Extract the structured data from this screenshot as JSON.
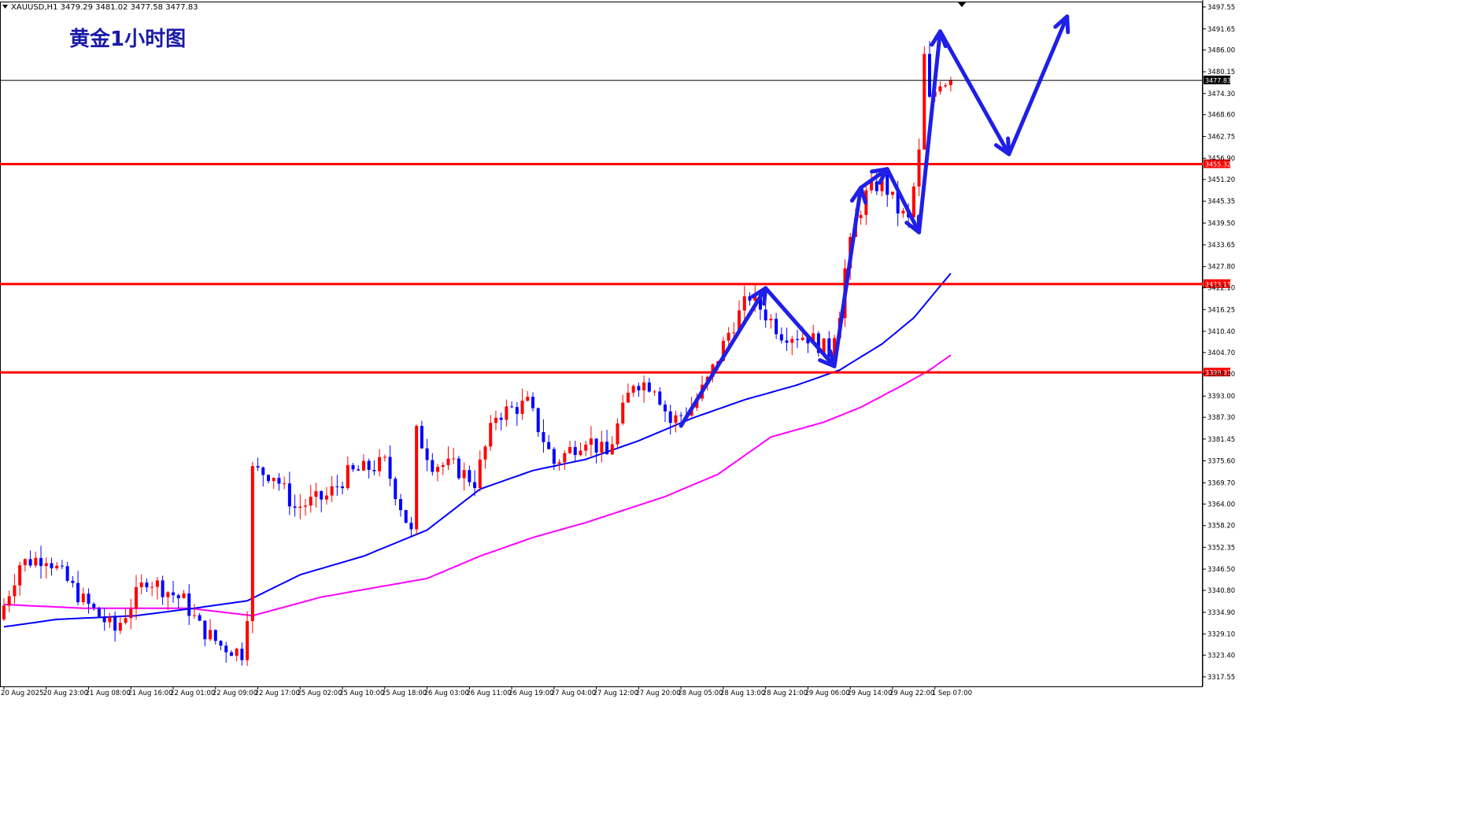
{
  "header": {
    "symbol_line": "XAUUSD,H1  3479.29 3481.02 3477.58 3477.83",
    "title": "黄金1小时图"
  },
  "colors": {
    "bull": "#ff0000",
    "bear": "#0000ff",
    "ma_fast": "#0000ff",
    "ma_slow": "#ff00ff",
    "level_line": "#ff0000",
    "arrow": "#1f1fe6",
    "title": "#1a1aa8"
  },
  "chart_data": {
    "type": "candlestick",
    "title": "黄金1小时图",
    "symbol": "XAUUSD,H1",
    "ohlc_header": [
      3479.29,
      3481.02,
      3477.58,
      3477.83
    ],
    "ylim": [
      3315.0,
      3499.0
    ],
    "y_ticks": [
      3497.55,
      3491.65,
      3486.0,
      3480.15,
      3474.3,
      3468.6,
      3462.75,
      3456.9,
      3451.2,
      3445.35,
      3439.5,
      3433.65,
      3427.8,
      3422.1,
      3416.25,
      3410.4,
      3404.7,
      3399.0,
      3393.0,
      3387.3,
      3381.45,
      3375.6,
      3369.7,
      3364.0,
      3358.2,
      3352.35,
      3346.5,
      3340.8,
      3334.9,
      3329.1,
      3323.4,
      3317.55
    ],
    "y_tick_labels": [
      "3497.55",
      "3491.65",
      "3486.00",
      "3480.15",
      "3474.30",
      "3468.60",
      "3462.75",
      "3456.90",
      "3451.20",
      "3445.35",
      "3439.50",
      "3433.65",
      "3427.80",
      "3422.10",
      "3416.25",
      "3410.40",
      "3404.70",
      "3399.00",
      "3393.00",
      "3387.30",
      "3381.45",
      "3375.60",
      "3369.70",
      "3364.00",
      "3358.20",
      "3352.35",
      "3346.50",
      "3340.80",
      "3334.90",
      "3329.10",
      "3323.40",
      "3317.55"
    ],
    "x_tick_labels": [
      "20 Aug 2025",
      "20 Aug 23:00",
      "21 Aug 08:00",
      "21 Aug 16:00",
      "22 Aug 01:00",
      "22 Aug 09:00",
      "22 Aug 17:00",
      "25 Aug 02:00",
      "25 Aug 10:00",
      "25 Aug 18:00",
      "26 Aug 03:00",
      "26 Aug 11:00",
      "26 Aug 19:00",
      "27 Aug 04:00",
      "27 Aug 12:00",
      "27 Aug 20:00",
      "28 Aug 05:00",
      "28 Aug 13:00",
      "28 Aug 21:00",
      "29 Aug 06:00",
      "29 Aug 14:00",
      "29 Aug 22:00",
      "1 Sep 07:00"
    ],
    "x_tick_bar_index": [
      0,
      8,
      16,
      24,
      32,
      40,
      48,
      56,
      64,
      72,
      80,
      88,
      96,
      104,
      112,
      120,
      128,
      136,
      144,
      152,
      160,
      168,
      176
    ],
    "total_bars": 180,
    "current_price": 3477.83,
    "horizontal_levels": [
      3455.32,
      3423.11,
      3399.35
    ],
    "key_prices": [
      {
        "bar": 0,
        "price": 3333
      },
      {
        "bar": 4,
        "price": 3348
      },
      {
        "bar": 9,
        "price": 3350
      },
      {
        "bar": 16,
        "price": 3338
      },
      {
        "bar": 22,
        "price": 3330
      },
      {
        "bar": 28,
        "price": 3344
      },
      {
        "bar": 35,
        "price": 3338
      },
      {
        "bar": 38,
        "price": 3331
      },
      {
        "bar": 42,
        "price": 3326
      },
      {
        "bar": 46,
        "price": 3324
      },
      {
        "bar": 47,
        "price": 3335
      },
      {
        "bar": 48,
        "price": 3373
      },
      {
        "bar": 52,
        "price": 3372
      },
      {
        "bar": 56,
        "price": 3363
      },
      {
        "bar": 62,
        "price": 3366
      },
      {
        "bar": 66,
        "price": 3372
      },
      {
        "bar": 73,
        "price": 3375
      },
      {
        "bar": 78,
        "price": 3356
      },
      {
        "bar": 79,
        "price": 3383
      },
      {
        "bar": 82,
        "price": 3375
      },
      {
        "bar": 86,
        "price": 3374
      },
      {
        "bar": 90,
        "price": 3370
      },
      {
        "bar": 94,
        "price": 3388
      },
      {
        "bar": 100,
        "price": 3391
      },
      {
        "bar": 105,
        "price": 3375
      },
      {
        "bar": 111,
        "price": 3382
      },
      {
        "bar": 115,
        "price": 3377
      },
      {
        "bar": 118,
        "price": 3389
      },
      {
        "bar": 120,
        "price": 3397
      },
      {
        "bar": 124,
        "price": 3396
      },
      {
        "bar": 127,
        "price": 3386
      },
      {
        "bar": 131,
        "price": 3390
      },
      {
        "bar": 134,
        "price": 3397
      },
      {
        "bar": 138,
        "price": 3410
      },
      {
        "bar": 142,
        "price": 3420
      },
      {
        "bar": 145,
        "price": 3415
      },
      {
        "bar": 148,
        "price": 3410
      },
      {
        "bar": 153,
        "price": 3409
      },
      {
        "bar": 157,
        "price": 3405
      },
      {
        "bar": 159,
        "price": 3416
      },
      {
        "bar": 160,
        "price": 3427
      },
      {
        "bar": 162,
        "price": 3440
      },
      {
        "bar": 164,
        "price": 3447
      },
      {
        "bar": 167,
        "price": 3451
      },
      {
        "bar": 170,
        "price": 3443
      },
      {
        "bar": 172,
        "price": 3440
      },
      {
        "bar": 174,
        "price": 3458
      },
      {
        "bar": 175,
        "price": 3484
      },
      {
        "bar": 176,
        "price": 3472
      },
      {
        "bar": 178,
        "price": 3478
      },
      {
        "bar": 179,
        "price": 3477.83
      }
    ],
    "ma_fast": [
      {
        "bar": 0,
        "price": 3331
      },
      {
        "bar": 10,
        "price": 3333
      },
      {
        "bar": 25,
        "price": 3334
      },
      {
        "bar": 36,
        "price": 3336
      },
      {
        "bar": 46,
        "price": 3338
      },
      {
        "bar": 56,
        "price": 3345
      },
      {
        "bar": 68,
        "price": 3350
      },
      {
        "bar": 80,
        "price": 3357
      },
      {
        "bar": 90,
        "price": 3368
      },
      {
        "bar": 100,
        "price": 3373
      },
      {
        "bar": 110,
        "price": 3376
      },
      {
        "bar": 120,
        "price": 3381
      },
      {
        "bar": 130,
        "price": 3387
      },
      {
        "bar": 140,
        "price": 3392
      },
      {
        "bar": 150,
        "price": 3396
      },
      {
        "bar": 158,
        "price": 3400
      },
      {
        "bar": 166,
        "price": 3407
      },
      {
        "bar": 172,
        "price": 3414
      },
      {
        "bar": 179,
        "price": 3426
      }
    ],
    "ma_slow": [
      {
        "bar": 0,
        "price": 3337
      },
      {
        "bar": 15,
        "price": 3336
      },
      {
        "bar": 35,
        "price": 3336
      },
      {
        "bar": 47,
        "price": 3334
      },
      {
        "bar": 60,
        "price": 3339
      },
      {
        "bar": 72,
        "price": 3342
      },
      {
        "bar": 80,
        "price": 3344
      },
      {
        "bar": 90,
        "price": 3350
      },
      {
        "bar": 100,
        "price": 3355
      },
      {
        "bar": 110,
        "price": 3359
      },
      {
        "bar": 125,
        "price": 3366
      },
      {
        "bar": 135,
        "price": 3372
      },
      {
        "bar": 145,
        "price": 3382
      },
      {
        "bar": 155,
        "price": 3386
      },
      {
        "bar": 162,
        "price": 3390
      },
      {
        "bar": 170,
        "price": 3396
      },
      {
        "bar": 175,
        "price": 3400
      },
      {
        "bar": 179,
        "price": 3404
      }
    ],
    "annotation_path": [
      {
        "bar": 128,
        "price": 3385
      },
      {
        "bar": 144,
        "price": 3422
      },
      {
        "bar": 157,
        "price": 3401
      },
      {
        "bar": 162,
        "price": 3449
      },
      {
        "bar": 167,
        "price": 3454
      },
      {
        "bar": 173,
        "price": 3437
      },
      {
        "bar": 177,
        "price": 3491
      },
      {
        "bar": 190,
        "price": 3458
      },
      {
        "bar": 201,
        "price": 3495
      }
    ]
  }
}
